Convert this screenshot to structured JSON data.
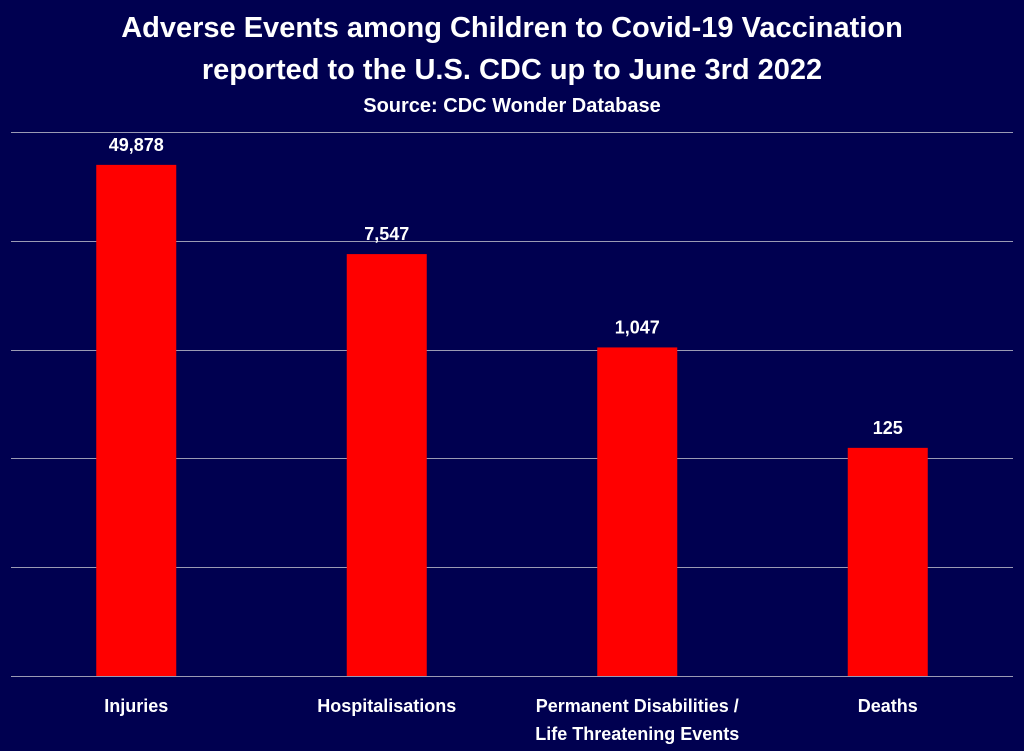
{
  "chart_data": {
    "type": "bar",
    "title_lines": [
      "Adverse Events among Children to Covid-19 Vaccination",
      "reported to the U.S. CDC up to June 3rd 2022"
    ],
    "subtitle": "Source: CDC Wonder Database",
    "categories": [
      [
        "Injuries"
      ],
      [
        "Hospitalisations"
      ],
      [
        "Permanent Disabilities /",
        "Life Threatening Events"
      ],
      [
        "Deaths"
      ]
    ],
    "values": [
      49878,
      7547,
      1047,
      125
    ],
    "value_labels": [
      "49,878",
      "7,547",
      "1,047",
      "125"
    ],
    "y_scale": "log",
    "ylim": [
      1,
      100000
    ],
    "grid": true,
    "legend": "none",
    "colors": {
      "background": "#000050",
      "bar": "#ff0000",
      "text": "#ffffff",
      "grid": "#9a9ab4"
    }
  }
}
